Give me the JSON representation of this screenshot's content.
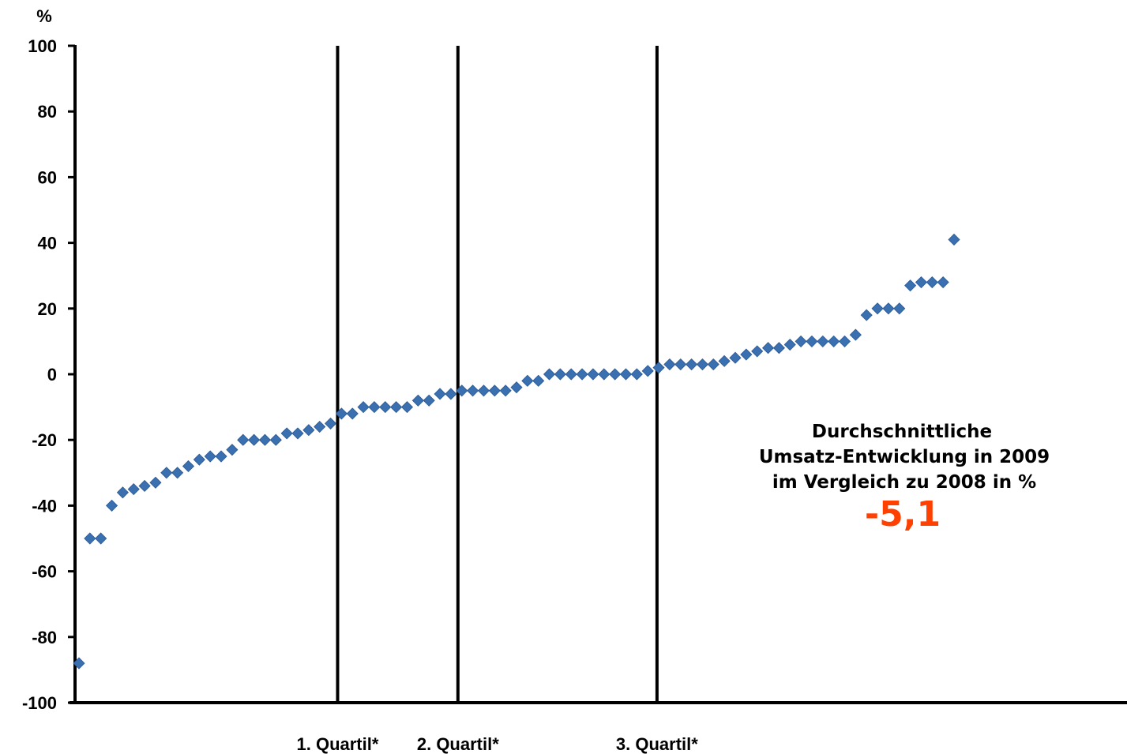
{
  "chart_data": {
    "type": "scatter",
    "y_unit": "%",
    "ylim": [
      -100,
      100
    ],
    "y_ticks": [
      "100",
      "80",
      "60",
      "40",
      "20",
      "0",
      "-20",
      "-40",
      "-60",
      "-80",
      "-100"
    ],
    "grid": false,
    "point_color": "#3a6fb0",
    "values": [
      -88,
      -50,
      -50,
      -40,
      -36,
      -35,
      -34,
      -33,
      -30,
      -30,
      -28,
      -26,
      -25,
      -25,
      -23,
      -20,
      -20,
      -20,
      -20,
      -18,
      -18,
      -17,
      -16,
      -15,
      -12,
      -12,
      -10,
      -10,
      -10,
      -10,
      -10,
      -8,
      -8,
      -6,
      -6,
      -5,
      -5,
      -5,
      -5,
      -5,
      -4,
      -2,
      -2,
      0,
      0,
      0,
      0,
      0,
      0,
      0,
      0,
      0,
      1,
      2,
      3,
      3,
      3,
      3,
      3,
      4,
      5,
      6,
      7,
      8,
      8,
      9,
      10,
      10,
      10,
      10,
      10,
      12,
      18,
      20,
      20,
      20,
      27,
      28,
      28,
      28,
      41
    ],
    "quartiles": [
      {
        "label": "1. Quartil*",
        "after_index": 23.5
      },
      {
        "label": "2. Quartil*",
        "after_index": 34.5
      },
      {
        "label": "3. Quartil*",
        "after_index": 52.7
      }
    ],
    "annotation": {
      "lines": [
        "Durchschnittliche",
        "Umsatz-Entwicklung in 2009",
        "im Vergleich zu 2008 in %"
      ],
      "value": "-5,1",
      "value_color": "#ff4000"
    }
  }
}
